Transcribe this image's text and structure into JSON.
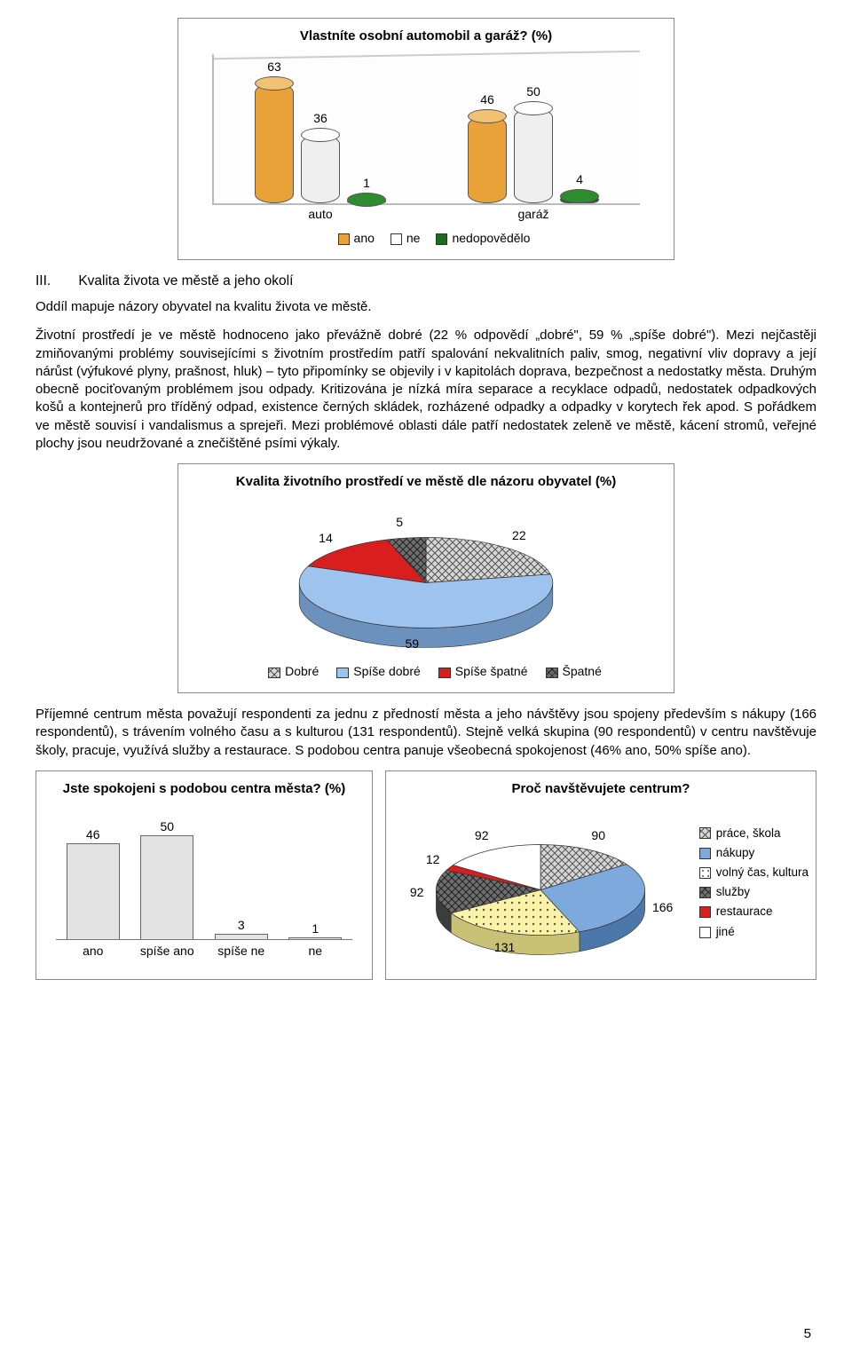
{
  "page_number": "5",
  "chart1": {
    "type": "bar-3d-cylinder",
    "title": "Vlastníte osobní automobil a garáž? (%)",
    "categories": [
      "auto",
      "garáž"
    ],
    "series": [
      {
        "name": "ano",
        "color_body": "#e9a23a",
        "color_top": "#f1c174",
        "values": [
          63,
          46
        ]
      },
      {
        "name": "ne",
        "color_body": "#efefef",
        "color_top": "#ffffff",
        "values": [
          36,
          50
        ]
      },
      {
        "name": "nedopovědělo",
        "color_body": "#1f6b1f",
        "color_top": "#2e8b2e",
        "values": [
          1,
          4
        ]
      }
    ],
    "ymax": 70,
    "legend_swatch_bg": [
      "#e9a23a",
      "#ffffff",
      "#1f6b1f"
    ]
  },
  "heading": {
    "roman": "III.",
    "text": "Kvalita života ve městě a jeho okolí"
  },
  "para1": "Oddíl mapuje názory obyvatel na kvalitu života ve městě.",
  "para2": "Životní prostředí je ve městě hodnoceno jako převážně dobré (22 % odpovědí „dobré\", 59 % „spíše dobré\"). Mezi nejčastěji zmiňovanými problémy souvisejícími s životním prostředím patří spalování nekvalitních paliv, smog, negativní vliv dopravy a její nárůst (výfukové plyny, prašnost, hluk) – tyto připomínky se objevily i v kapitolách doprava, bezpečnost a nedostatky města. Druhým obecně pociťovaným problémem jsou odpady. Kritizována je nízká míra separace a recyklace odpadů, nedostatek odpadkových košů a kontejnerů pro tříděný odpad, existence černých skládek, rozházené odpadky a odpadky v korytech řek apod. S pořádkem ve městě souvisí i vandalismus a sprejeři. Mezi problémové oblasti dále patří nedostatek zeleně ve městě, kácení stromů, veřejné plochy jsou neudržované a znečištěné psími výkaly.",
  "chart2": {
    "type": "pie-3d",
    "title": "Kvalita životního prostředí ve městě dle názoru obyvatel (%)",
    "slices": [
      {
        "name": "Dobré",
        "value": 22,
        "color": "#c8d6e8",
        "pattern": "hatch-cross"
      },
      {
        "name": "Spíše dobré",
        "value": 59,
        "color": "#9ec3ef"
      },
      {
        "name": "Spíše špatné",
        "value": 14,
        "color": "#d81e1e"
      },
      {
        "name": "Špatné",
        "value": 5,
        "color": "#6e6e6e",
        "pattern": "hatch-cross-dark"
      }
    ],
    "labels_shown": [
      "5",
      "22",
      "14",
      "59"
    ]
  },
  "para3": "Příjemné centrum města považují respondenti za jednu z předností města a jeho návštěvy jsou spojeny především s nákupy (166 respondentů), s trávením volného času a s kulturou (131 respondentů). Stejně velká skupina (90 respondentů) v centru navštěvuje školy, pracuje, využívá služby a restaurace. S podobou centra panuje všeobecná spokojenost (46% ano, 50% spíše ano).",
  "chart3": {
    "type": "bar",
    "title": "Jste spokojeni s podobou centra města? (%)",
    "categories": [
      "ano",
      "spíše ano",
      "spíše ne",
      "ne"
    ],
    "values": [
      46,
      50,
      3,
      1
    ],
    "bar_color": "#e3e3e3",
    "ymax": 55
  },
  "chart4": {
    "type": "pie-3d",
    "title": "Proč navštěvujete centrum?",
    "slices": [
      {
        "name": "práce, škola",
        "value": 90,
        "color": "#bcbcbc",
        "pattern": "hatch-cross"
      },
      {
        "name": "nákupy",
        "value": 166,
        "color": "#7ea9dc"
      },
      {
        "name": "volný čas, kultura",
        "value": 131,
        "color": "#fbf3a8",
        "pattern": "hatch-dots"
      },
      {
        "name": "služby",
        "value": 92,
        "color": "#6e6e6e",
        "pattern": "hatch-cross-dark"
      },
      {
        "name": "restaurace",
        "value": 12,
        "color": "#d81e1e"
      },
      {
        "name": "jiné",
        "value": 92,
        "color": "#ffffff"
      }
    ],
    "labels_shown": [
      "90",
      "12",
      "92",
      "92",
      "131",
      "166"
    ]
  }
}
